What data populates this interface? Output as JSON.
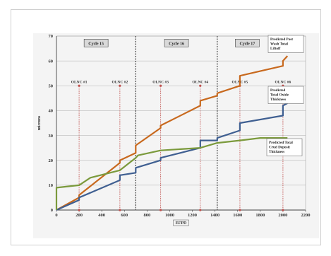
{
  "chart_data": {
    "type": "line",
    "title": "",
    "xlabel": "EFPD",
    "ylabel": "microns",
    "xlim": [
      0,
      2200
    ],
    "ylim": [
      0,
      70
    ],
    "x_ticks": [
      "0",
      "200",
      "400",
      "600",
      "800",
      "1000",
      "1200",
      "1400",
      "1600",
      "1800",
      "2000",
      "2200"
    ],
    "y_ticks": [
      "0",
      "10",
      "20",
      "30",
      "40",
      "50",
      "60",
      "70"
    ],
    "grid": "horizontal",
    "cycles": [
      {
        "label": "Cycle 15",
        "x_start": 0,
        "x_end": 700
      },
      {
        "label": "Cycle 16",
        "x_start": 700,
        "x_end": 1420
      },
      {
        "label": "Cycle 17",
        "x_start": 1420,
        "x_end": 2200
      }
    ],
    "cycle_boundaries": [
      700,
      1420
    ],
    "outages": [
      {
        "label": "OLNC #1",
        "x": 200,
        "y": 50
      },
      {
        "label": "OLNC #2",
        "x": 560,
        "y": 50
      },
      {
        "label": "OLNC #3",
        "x": 920,
        "y": 50
      },
      {
        "label": "OLNC #4",
        "x": 1270,
        "y": 50
      },
      {
        "label": "OLNC #5",
        "x": 1620,
        "y": 50
      },
      {
        "label": "OLNC #6",
        "x": 2000,
        "y": 50
      }
    ],
    "series": [
      {
        "name": "Predicted Post Wash Total Liftoff",
        "color": "#c8691e",
        "x": [
          0,
          200,
          200,
          560,
          560,
          700,
          700,
          920,
          920,
          1270,
          1270,
          1420,
          1420,
          1620,
          1620,
          2000,
          2000,
          2040
        ],
        "y": [
          0,
          5,
          6,
          19,
          20,
          23,
          26,
          33,
          34,
          42,
          44,
          46,
          47,
          50,
          54,
          58,
          60,
          62
        ]
      },
      {
        "name": "Predicted Total Oxide Thickness",
        "color": "#3f5f91",
        "x": [
          0,
          200,
          200,
          560,
          560,
          700,
          700,
          920,
          920,
          1270,
          1270,
          1420,
          1420,
          1620,
          1620,
          2000,
          2000,
          2040
        ],
        "y": [
          0,
          4,
          5,
          12,
          14,
          15,
          17,
          20,
          21,
          25,
          28,
          28,
          29,
          32,
          35,
          38,
          42,
          43
        ]
      },
      {
        "name": "Predicted Total Crud Deposit Thickness",
        "color": "#7b9a3c",
        "x": [
          0,
          0,
          200,
          300,
          560,
          700,
          720,
          920,
          1270,
          1420,
          1620,
          1800,
          2040
        ],
        "y": [
          0,
          9,
          10,
          13,
          16,
          21,
          22,
          24,
          25,
          27,
          28,
          29,
          29
        ]
      }
    ]
  }
}
